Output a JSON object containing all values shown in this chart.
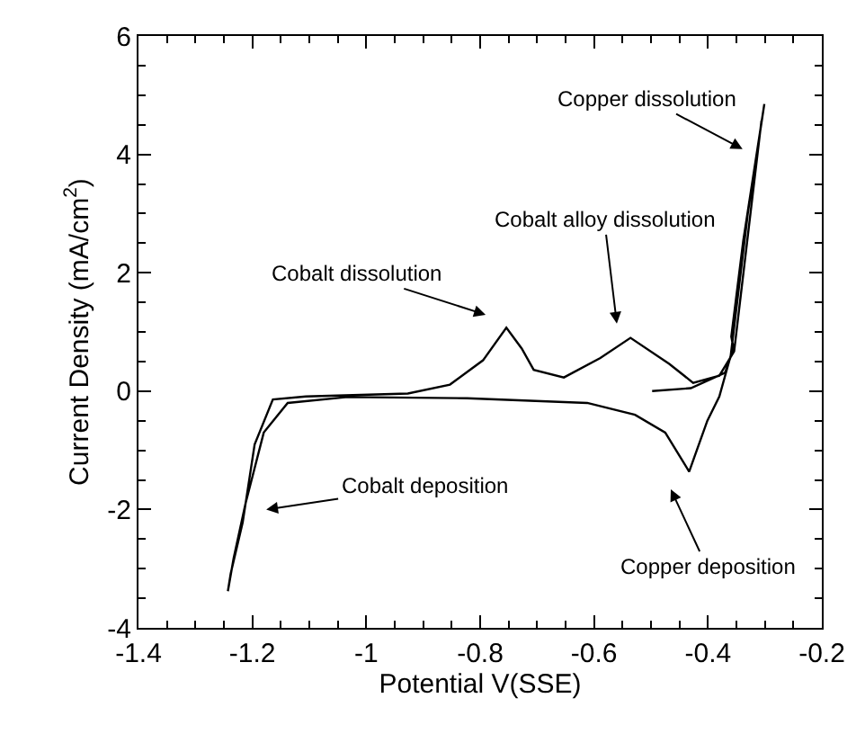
{
  "chart_data": {
    "type": "line",
    "xlabel": "Potential V(SSE)",
    "ylabel": "Current Density (mA/cm$^{2}$)",
    "xlim": [
      -1.4,
      -0.2
    ],
    "ylim": [
      -4,
      6
    ],
    "xticks": [
      -1.4,
      {
        "value": -1.35,
        "label": null
      },
      {
        "value": -1.3,
        "label": null
      },
      {
        "value": -1.25,
        "label": null
      },
      -1.2,
      {
        "value": -1.15,
        "label": null
      },
      {
        "value": -1.1,
        "label": null
      },
      {
        "value": -1.05,
        "label": null
      },
      -1,
      {
        "value": -0.95,
        "label": null
      },
      {
        "value": -0.9,
        "label": null
      },
      {
        "value": -0.85,
        "label": null
      },
      -0.8,
      {
        "value": -0.75,
        "label": null
      },
      {
        "value": -0.7,
        "label": null
      },
      {
        "value": -0.65,
        "label": null
      },
      -0.6,
      {
        "value": -0.55,
        "label": null
      },
      {
        "value": -0.5,
        "label": null
      },
      {
        "value": -0.45,
        "label": null
      },
      -0.4,
      {
        "value": -0.35,
        "label": null
      },
      {
        "value": -0.3,
        "label": null
      },
      {
        "value": -0.25,
        "label": null
      },
      -0.2
    ],
    "yticks": [
      -4,
      {
        "value": -3.5,
        "label": null
      },
      {
        "value": -3,
        "label": null
      },
      {
        "value": -2.5,
        "label": null
      },
      -2,
      {
        "value": -1.5,
        "label": null
      },
      {
        "value": -1,
        "label": null
      },
      {
        "value": -0.5,
        "label": null
      },
      0,
      {
        "value": 0.5,
        "label": null
      },
      {
        "value": 1,
        "label": null
      },
      {
        "value": 1.5,
        "label": null
      },
      2,
      {
        "value": 2.5,
        "label": null
      },
      {
        "value": 3,
        "label": null
      },
      {
        "value": 3.5,
        "label": null
      },
      4,
      {
        "value": 4.5,
        "label": null
      },
      {
        "value": 5,
        "label": null
      },
      {
        "value": 5.5,
        "label": null
      },
      6
    ],
    "marker": "none",
    "line_style": "solid",
    "series": [
      {
        "color": "#000000",
        "x": [
          -0.498,
          -0.43,
          -0.37,
          -0.355,
          -0.359,
          -0.338,
          -0.301,
          -0.33,
          -0.36,
          -0.38,
          -0.401,
          -0.433,
          -0.475,
          -0.528,
          -0.612,
          -0.823,
          -1.033,
          -1.138,
          -1.18,
          -1.212,
          -1.233,
          -1.243,
          -1.238,
          -1.217,
          -1.196,
          -1.164,
          -1.106,
          -0.927,
          -0.853,
          -0.795,
          -0.754,
          -0.727,
          -0.706,
          -0.653,
          -0.589,
          -0.536,
          -0.468,
          -0.426,
          -0.38,
          -0.354,
          -0.306
        ],
        "values": [
          0.0,
          0.05,
          0.31,
          0.72,
          0.92,
          2.54,
          4.85,
          3.0,
          0.6,
          -0.09,
          -0.5,
          -1.36,
          -0.7,
          -0.4,
          -0.2,
          -0.12,
          -0.1,
          -0.2,
          -0.7,
          -1.9,
          -2.83,
          -3.38,
          -3.08,
          -2.22,
          -0.9,
          -0.14,
          -0.09,
          -0.04,
          0.11,
          0.52,
          1.07,
          0.72,
          0.36,
          0.23,
          0.56,
          0.9,
          0.46,
          0.14,
          0.26,
          0.67,
          4.57
        ]
      }
    ],
    "annotations": [
      "Copper dissolution",
      "Cobalt alloy dissolution",
      "Cobalt dissolution",
      "Cobalt deposition",
      "Copper deposition"
    ]
  }
}
